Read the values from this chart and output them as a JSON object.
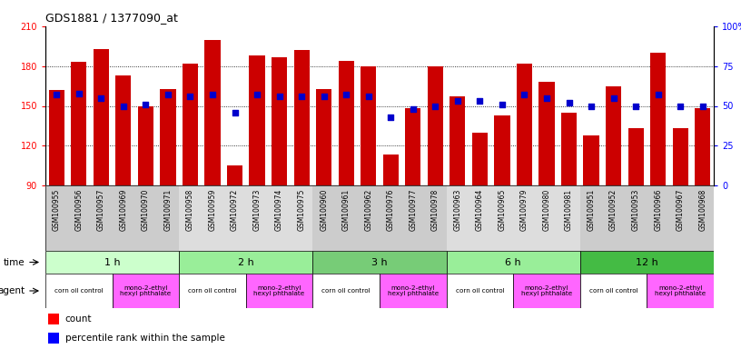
{
  "title": "GDS1881 / 1377090_at",
  "samples": [
    "GSM100955",
    "GSM100956",
    "GSM100957",
    "GSM100969",
    "GSM100970",
    "GSM100971",
    "GSM100958",
    "GSM100959",
    "GSM100972",
    "GSM100973",
    "GSM100974",
    "GSM100975",
    "GSM100960",
    "GSM100961",
    "GSM100962",
    "GSM100976",
    "GSM100977",
    "GSM100978",
    "GSM100963",
    "GSM100964",
    "GSM100965",
    "GSM100979",
    "GSM100980",
    "GSM100981",
    "GSM100951",
    "GSM100952",
    "GSM100953",
    "GSM100966",
    "GSM100967",
    "GSM100968"
  ],
  "bar_values": [
    162,
    183,
    193,
    173,
    150,
    163,
    182,
    200,
    105,
    188,
    187,
    192,
    163,
    184,
    180,
    113,
    148,
    180,
    157,
    130,
    143,
    182,
    168,
    145,
    128,
    165,
    133,
    190,
    133,
    148
  ],
  "percentile_values": [
    57,
    58,
    55,
    50,
    51,
    57,
    56,
    57,
    46,
    57,
    56,
    56,
    56,
    57,
    56,
    43,
    48,
    50,
    53,
    53,
    51,
    57,
    55,
    52,
    50,
    55,
    50,
    57,
    50,
    50
  ],
  "ymin": 90,
  "ymax": 210,
  "pct_min": 0,
  "pct_max": 100,
  "yticks_left": [
    90,
    120,
    150,
    180,
    210
  ],
  "yticks_right": [
    0,
    25,
    50,
    75,
    100
  ],
  "bar_color": "#cc0000",
  "dot_color": "#0000cc",
  "time_groups": [
    {
      "label": "1 h",
      "start": 0,
      "end": 6,
      "color": "#ccffcc"
    },
    {
      "label": "2 h",
      "start": 6,
      "end": 12,
      "color": "#99ee99"
    },
    {
      "label": "3 h",
      "start": 12,
      "end": 18,
      "color": "#77cc77"
    },
    {
      "label": "6 h",
      "start": 18,
      "end": 24,
      "color": "#99ee99"
    },
    {
      "label": "12 h",
      "start": 24,
      "end": 30,
      "color": "#44bb44"
    }
  ],
  "agent_groups": [
    {
      "label": "corn oil control",
      "start": 0,
      "end": 3,
      "color": "#ffffff"
    },
    {
      "label": "mono-2-ethyl\nhexyl phthalate",
      "start": 3,
      "end": 6,
      "color": "#ff66ff"
    },
    {
      "label": "corn oil control",
      "start": 6,
      "end": 9,
      "color": "#ffffff"
    },
    {
      "label": "mono-2-ethyl\nhexyl phthalate",
      "start": 9,
      "end": 12,
      "color": "#ff66ff"
    },
    {
      "label": "corn oil control",
      "start": 12,
      "end": 15,
      "color": "#ffffff"
    },
    {
      "label": "mono-2-ethyl\nhexyl phthalate",
      "start": 15,
      "end": 18,
      "color": "#ff66ff"
    },
    {
      "label": "corn oil control",
      "start": 18,
      "end": 21,
      "color": "#ffffff"
    },
    {
      "label": "mono-2-ethyl\nhexyl phthalate",
      "start": 21,
      "end": 24,
      "color": "#ff66ff"
    },
    {
      "label": "corn oil control",
      "start": 24,
      "end": 27,
      "color": "#ffffff"
    },
    {
      "label": "mono-2-ethyl\nhexyl phthalate",
      "start": 27,
      "end": 30,
      "color": "#ff66ff"
    }
  ],
  "tick_alt_colors": [
    "#cccccc",
    "#dddddd"
  ],
  "fig_width": 8.16,
  "fig_height": 3.84,
  "dpi": 100
}
